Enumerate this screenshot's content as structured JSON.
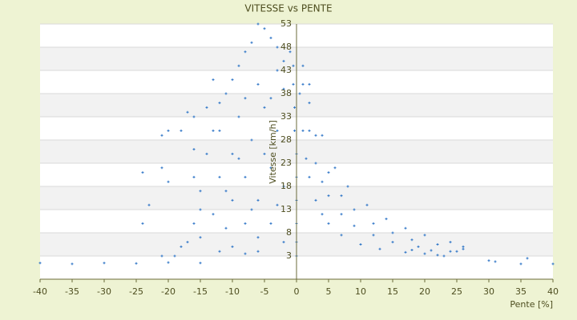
{
  "chart_data": {
    "type": "scatter",
    "title": "VITESSE vs PENTE",
    "x_label": "Pente [%]",
    "y_label": "Vitesse [km/h]",
    "color": "#2e75c6",
    "xlim": [
      -40,
      40
    ],
    "xticks": [
      -40,
      -35,
      -30,
      -25,
      -20,
      -15,
      -10,
      -5,
      0,
      5,
      10,
      15,
      20,
      25,
      30,
      35,
      40
    ],
    "ylim": [
      -2,
      53
    ],
    "yticks": [
      3,
      8,
      13,
      18,
      23,
      28,
      33,
      38,
      43,
      48,
      53
    ],
    "grid": true,
    "x": [
      0.5,
      1,
      1.5,
      2,
      3,
      4,
      5,
      7,
      10,
      13,
      17,
      22,
      1,
      2,
      3,
      4,
      5,
      7,
      9,
      12,
      15,
      19,
      24,
      1,
      2,
      3,
      5,
      7,
      9,
      12,
      15,
      18,
      22,
      26,
      2,
      4,
      6,
      8,
      11,
      14,
      17,
      20,
      24,
      -40,
      -35,
      -30,
      -25,
      -20,
      -15,
      31,
      35,
      40,
      0,
      0,
      0,
      0,
      0,
      0,
      -0.3,
      -0.3,
      -0.5,
      -0.5,
      -2,
      -3,
      -4,
      -5,
      -6,
      -7,
      -8,
      -9,
      -10,
      -11,
      -12,
      -13,
      -14,
      -16,
      -20,
      -21,
      -16,
      -16,
      -15,
      -15,
      -16,
      -17,
      -18,
      -19,
      -21,
      -24,
      -23,
      -24,
      -20,
      -21,
      -12,
      -10,
      -8,
      -6,
      -4,
      -2,
      -10,
      -8,
      -6,
      -12,
      -13,
      -10,
      -5,
      -3,
      -7,
      -9,
      -4,
      -2,
      -11,
      -14,
      -12,
      -8,
      -6,
      -3,
      -1,
      -6,
      -4,
      -8,
      -2,
      -15,
      -5,
      -7,
      -9,
      -3,
      -11,
      -13,
      -17,
      -18,
      20,
      23,
      25,
      26,
      30,
      36,
      18,
      21
    ],
    "values": [
      38,
      30,
      24,
      20,
      15,
      12,
      10,
      7.5,
      5.5,
      4.5,
      3.8,
      3.2,
      40,
      30,
      23,
      19,
      16,
      12,
      9.5,
      7.5,
      6,
      5,
      4,
      44,
      36,
      29,
      21,
      16,
      13,
      10,
      8,
      6.5,
      5.5,
      4.5,
      40,
      29,
      22,
      18,
      14,
      11,
      9,
      7.5,
      6,
      1.5,
      1.3,
      1.5,
      1.4,
      1.6,
      1.5,
      1.8,
      1.3,
      1.3,
      3,
      6,
      10,
      15,
      20,
      25,
      30,
      35,
      40,
      44,
      45,
      48,
      50,
      52,
      53,
      49,
      47,
      44,
      41,
      38,
      36,
      41,
      35,
      33,
      30,
      29,
      26,
      20,
      17,
      13,
      10,
      6,
      5,
      3,
      3,
      21,
      14,
      10,
      19,
      22,
      30,
      25,
      20,
      15,
      10,
      6,
      15,
      10,
      7,
      20,
      12,
      5,
      35,
      30,
      28,
      33,
      22,
      18,
      9,
      25,
      4,
      3.5,
      4,
      43,
      47,
      40,
      37,
      37,
      39,
      7,
      25,
      13,
      24,
      14,
      17,
      30,
      34,
      30,
      3.5,
      3,
      4,
      5,
      2,
      2.5,
      4.3,
      4.2
    ]
  }
}
